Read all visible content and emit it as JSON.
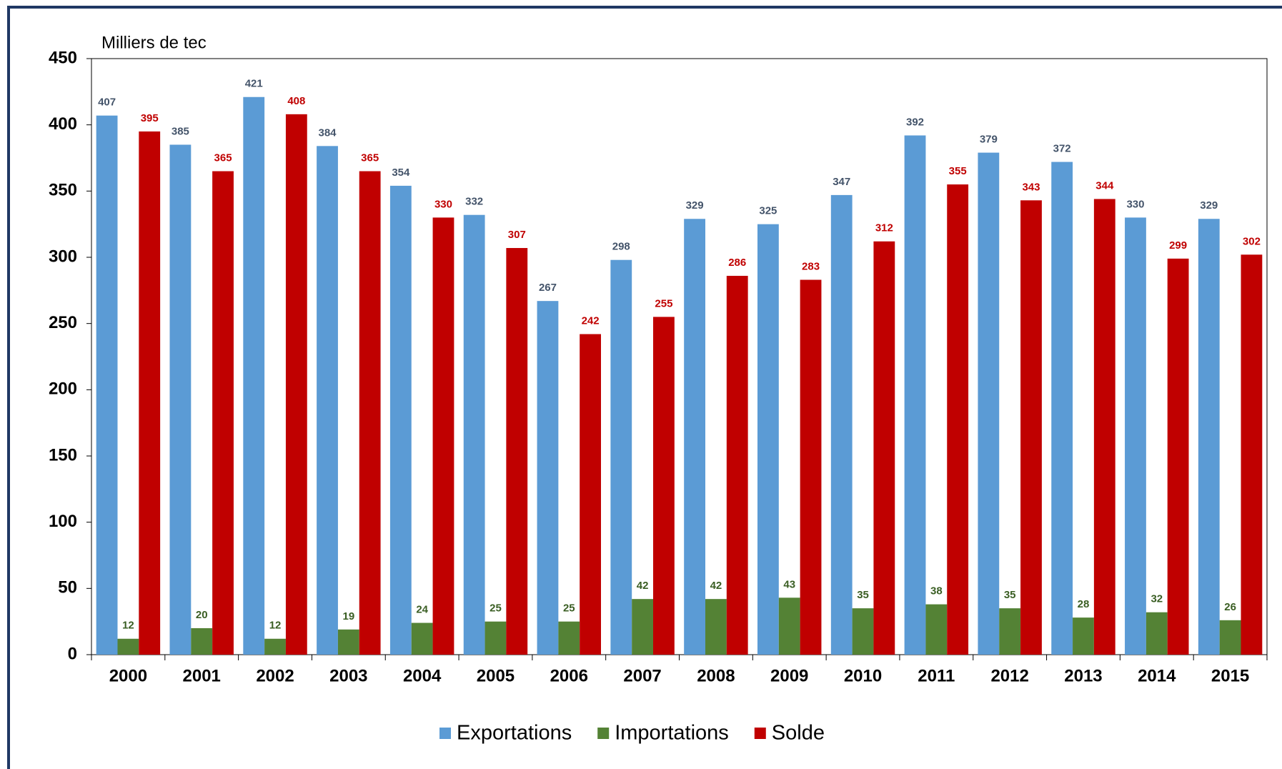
{
  "chart_data": {
    "type": "bar",
    "y_label": "Milliers de tec",
    "categories": [
      "2000",
      "2001",
      "2002",
      "2003",
      "2004",
      "2005",
      "2006",
      "2007",
      "2008",
      "2009",
      "2010",
      "2011",
      "2012",
      "2013",
      "2014",
      "2015"
    ],
    "series": [
      {
        "name": "Exportations",
        "color": "#5b9bd5",
        "label_color": "#44546a",
        "values": [
          407,
          385,
          421,
          384,
          354,
          332,
          267,
          298,
          329,
          325,
          347,
          392,
          379,
          372,
          330,
          329
        ]
      },
      {
        "name": "Importations",
        "color": "#548235",
        "label_color": "#3a5e23",
        "values": [
          12,
          20,
          12,
          19,
          24,
          25,
          25,
          42,
          42,
          43,
          35,
          38,
          35,
          28,
          32,
          26
        ]
      },
      {
        "name": "Solde",
        "color": "#c00000",
        "label_color": "#c00000",
        "values": [
          395,
          365,
          408,
          365,
          330,
          307,
          242,
          255,
          286,
          283,
          312,
          355,
          343,
          344,
          299,
          302
        ]
      }
    ],
    "ylim": [
      0,
      450
    ],
    "yticks": [
      0,
      50,
      100,
      150,
      200,
      250,
      300,
      350,
      400,
      450
    ],
    "grid": false,
    "legend": "bottom"
  }
}
